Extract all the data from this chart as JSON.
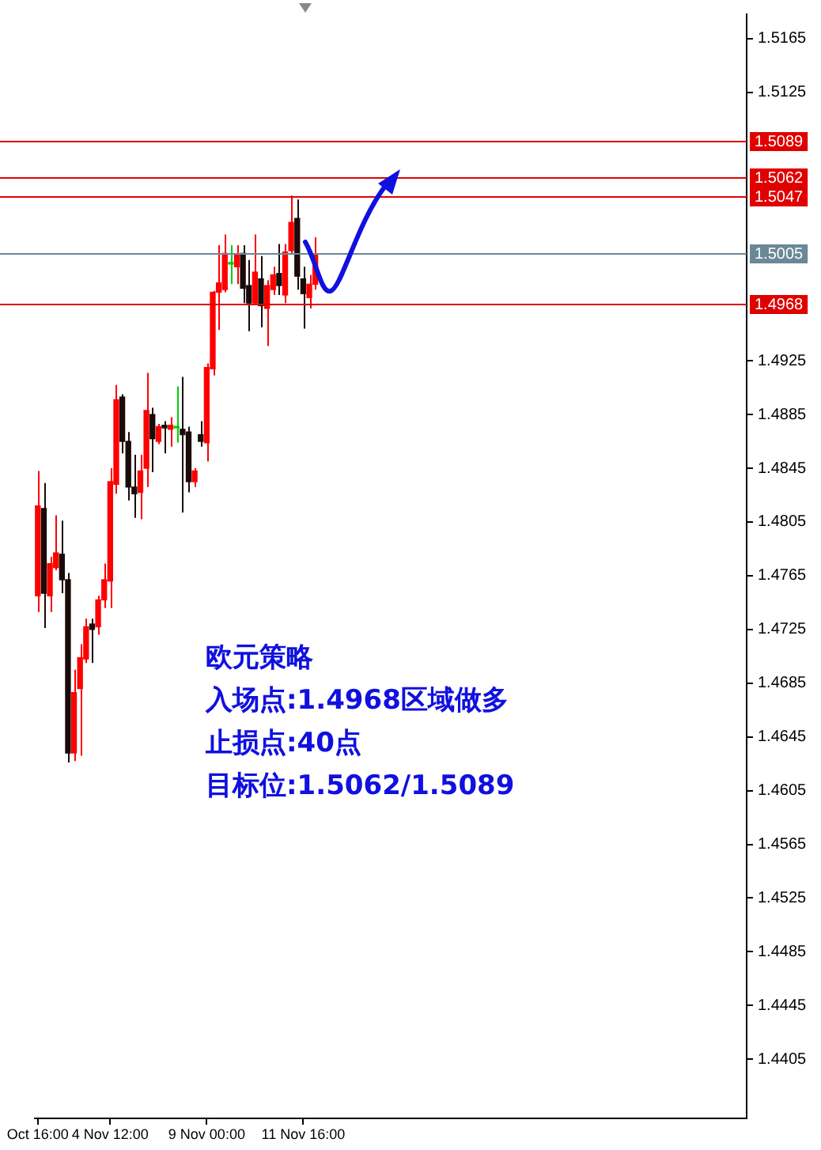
{
  "chart_data": {
    "type": "candlestick",
    "categories": [
      "Oct 16:00",
      null,
      null,
      null,
      null,
      null,
      null,
      null,
      null,
      null,
      null,
      null,
      "4 Nov 12:00",
      null,
      null,
      null,
      null,
      null,
      null,
      null,
      null,
      null,
      null,
      null,
      null,
      null,
      null,
      null,
      "9 Nov 00:00",
      null,
      null,
      null,
      null,
      null,
      null,
      null,
      null,
      null,
      null,
      null,
      null,
      null,
      null,
      null,
      "11 Nov 16:00",
      null,
      null,
      null,
      null,
      null,
      null,
      null,
      null,
      null,
      null,
      null,
      null,
      null,
      null,
      null,
      null,
      null,
      null,
      null,
      null,
      null,
      null,
      null,
      null,
      null,
      null,
      null,
      null,
      null,
      null,
      null,
      null,
      null,
      null,
      null,
      null,
      null,
      null,
      null,
      null,
      null,
      null,
      null,
      null,
      null,
      null,
      null,
      null,
      null,
      null,
      null,
      null,
      null,
      null,
      null,
      null,
      null,
      null,
      null,
      null,
      null,
      null,
      null,
      null,
      null,
      null,
      null,
      null,
      null,
      null,
      null,
      null,
      null
    ],
    "ohlc": [
      [
        1.475,
        1.4843,
        1.4738,
        1.4817
      ],
      [
        1.4815,
        1.4834,
        1.4726,
        1.4752
      ],
      [
        1.475,
        1.4779,
        1.4738,
        1.4774
      ],
      [
        1.4771,
        1.481,
        1.4769,
        1.4782
      ],
      [
        1.4781,
        1.4806,
        1.4752,
        1.4762
      ],
      [
        1.4762,
        1.4767,
        1.4626,
        1.4633
      ],
      [
        1.4633,
        1.4695,
        1.4627,
        1.4678
      ],
      [
        1.4681,
        1.4714,
        1.4631,
        1.4704
      ],
      [
        1.4703,
        1.4733,
        1.47,
        1.4727
      ],
      [
        1.4729,
        1.4733,
        1.47,
        1.4725
      ],
      [
        1.4727,
        1.475,
        1.4721,
        1.4747
      ],
      [
        1.4747,
        1.4774,
        1.4741,
        1.4762
      ],
      [
        1.4761,
        1.4845,
        1.4741,
        1.4835
      ],
      [
        1.4833,
        1.4907,
        1.4826,
        1.4896
      ],
      [
        1.4898,
        1.49,
        1.4856,
        1.4865
      ],
      [
        1.4865,
        1.4872,
        1.4821,
        1.4831
      ],
      [
        1.4831,
        1.4855,
        1.4808,
        1.4826
      ],
      [
        1.4827,
        1.4855,
        1.4807,
        1.4843
      ],
      [
        1.4845,
        1.4916,
        1.4831,
        1.4888
      ],
      [
        1.4885,
        1.489,
        1.4842,
        1.4867
      ],
      [
        1.4865,
        1.4878,
        1.4863,
        1.4876
      ],
      [
        1.4877,
        1.488,
        1.4856,
        1.4875
      ],
      [
        1.4874,
        1.4883,
        1.4861,
        1.4877
      ],
      [
        1.4875,
        1.4906,
        1.4864,
        1.4875
      ],
      [
        1.4874,
        1.4913,
        1.4812,
        1.487
      ],
      [
        1.4872,
        1.4876,
        1.4827,
        1.4835
      ],
      [
        1.4835,
        1.4845,
        1.4831,
        1.4843
      ],
      [
        1.487,
        1.488,
        1.4861,
        1.4865
      ],
      [
        1.4864,
        1.4923,
        1.485,
        1.492
      ],
      [
        1.4919,
        1.4977,
        1.4914,
        1.4976
      ],
      [
        1.4976,
        1.5011,
        1.4948,
        1.4983
      ],
      [
        1.4978,
        1.5019,
        1.4976,
        1.5005
      ],
      [
        1.4997,
        1.5011,
        1.4982,
        1.4997
      ],
      [
        1.4995,
        1.5011,
        1.4982,
        1.5004
      ],
      [
        1.5005,
        1.5011,
        1.4968,
        1.4979
      ],
      [
        1.4981,
        1.5,
        1.4947,
        1.4968
      ],
      [
        1.4968,
        1.5019,
        1.4967,
        1.4991
      ],
      [
        1.4986,
        1.5003,
        1.495,
        1.4966
      ],
      [
        1.4964,
        1.4985,
        1.4936,
        1.4981
      ],
      [
        1.4978,
        1.4995,
        1.4974,
        1.4989
      ],
      [
        1.499,
        1.5012,
        1.4974,
        1.4981
      ],
      [
        1.4974,
        1.5012,
        1.4968,
        1.5006
      ],
      [
        1.5007,
        1.5048,
        1.5004,
        1.5028
      ],
      [
        1.5031,
        1.5045,
        1.4978,
        1.4988
      ],
      [
        1.4986,
        1.4995,
        1.4949,
        1.4975
      ],
      [
        1.4972,
        1.4989,
        1.4964,
        1.4982
      ],
      [
        1.4982,
        1.5017,
        1.4978,
        1.5004
      ],
      null,
      null,
      null,
      null,
      null,
      null,
      null,
      null,
      null,
      null,
      null,
      null,
      null,
      null,
      null,
      null,
      null,
      null,
      null,
      null,
      null,
      null,
      null,
      null,
      null,
      null,
      null,
      null,
      null,
      null,
      null,
      null,
      null,
      null,
      null,
      null,
      null,
      null,
      null,
      null,
      null,
      null,
      null,
      null,
      null,
      null,
      null,
      null,
      null,
      null,
      null,
      null,
      null,
      null,
      null,
      null,
      null,
      null,
      null,
      null,
      null,
      null,
      null,
      null,
      null,
      null,
      null,
      null,
      null,
      null,
      null
    ],
    "colors": [
      "#ff0000",
      "#1a0a0a",
      "#ff0000",
      "#ff0000",
      "#1a0a0a",
      "#1a0a0a",
      "#ff0000",
      "#ff0000",
      "#ff0000",
      "#1a0a0a",
      "#ff0000",
      "#ff0000",
      "#ff0000",
      "#ff0000",
      "#1a0a0a",
      "#1a0a0a",
      "#1a0a0a",
      "#ff0000",
      "#ff0000",
      "#1a0a0a",
      "#ff0000",
      "#1a0a0a",
      "#ff0000",
      "#00d000",
      "#1a0a0a",
      "#1a0a0a",
      "#ff0000",
      "#1a0a0a",
      "#ff0000",
      "#ff0000",
      "#ff0000",
      "#ff0000",
      "#00d000",
      "#ff0000",
      "#1a0a0a",
      "#1a0a0a",
      "#ff0000",
      "#1a0a0a",
      "#ff0000",
      "#ff0000",
      "#1a0a0a",
      "#ff0000",
      "#ff0000",
      "#1a0a0a",
      "#1a0a0a",
      "#ff0000",
      "#ff0000",
      null,
      null,
      null,
      null,
      null,
      null,
      null,
      null,
      null,
      null,
      null,
      null,
      null,
      null,
      null,
      null,
      null,
      null,
      null,
      null,
      null,
      null,
      null,
      null,
      null,
      null,
      null,
      null,
      null,
      null,
      null,
      null,
      null,
      null,
      null,
      null,
      null,
      null,
      null,
      null,
      null,
      null,
      null,
      null,
      null,
      null,
      null,
      null,
      null,
      null,
      null,
      null,
      null,
      null,
      null,
      null,
      null,
      null,
      null,
      null,
      null,
      null,
      null,
      null,
      null,
      null,
      null,
      null,
      null,
      null,
      null
    ],
    "ylim": [
      1.4361,
      1.5183
    ],
    "yticks": [
      1.5165,
      1.5125,
      1.4925,
      1.4885,
      1.4845,
      1.4805,
      1.4765,
      1.4725,
      1.4685,
      1.4645,
      1.4605,
      1.4565,
      1.4525,
      1.4485,
      1.4445,
      1.4405
    ],
    "ref_lines": [
      {
        "axis": "y",
        "value": 1.5089,
        "label": "1.5089",
        "color": "#e00000"
      },
      {
        "axis": "y",
        "value": 1.5062,
        "label": "1.5062",
        "color": "#e00000"
      },
      {
        "axis": "y",
        "value": 1.5047,
        "label": "1.5047",
        "color": "#e00000"
      },
      {
        "axis": "y",
        "value": 1.5005,
        "label": "1.5005",
        "color": "#6a8898"
      },
      {
        "axis": "y",
        "value": 1.4968,
        "label": "1.4968",
        "color": "#e00000"
      }
    ],
    "annotations": [
      "欧元策略",
      "入场点:1.4968区域做多",
      "止损点:40点",
      "目标位:1.5062/1.5089"
    ]
  }
}
